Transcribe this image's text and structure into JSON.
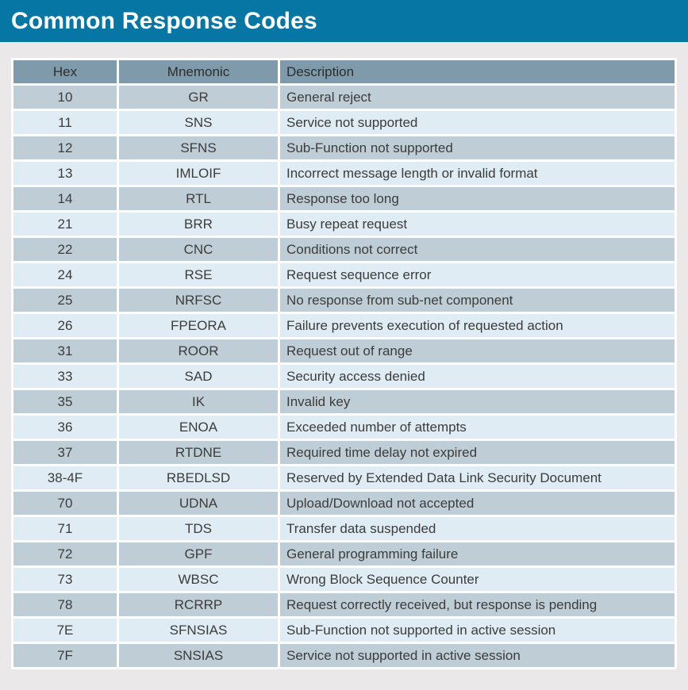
{
  "header": {
    "title": "Common Response Codes"
  },
  "table": {
    "columns": [
      "Hex",
      "Mnemonic",
      "Description"
    ],
    "rows": [
      {
        "hex": "10",
        "mnemonic": "GR",
        "description": "General reject"
      },
      {
        "hex": "11",
        "mnemonic": "SNS",
        "description": "Service not supported"
      },
      {
        "hex": "12",
        "mnemonic": "SFNS",
        "description": "Sub-Function not supported"
      },
      {
        "hex": "13",
        "mnemonic": "IMLOIF",
        "description": "Incorrect message length or invalid format"
      },
      {
        "hex": "14",
        "mnemonic": "RTL",
        "description": "Response too long"
      },
      {
        "hex": "21",
        "mnemonic": "BRR",
        "description": "Busy repeat request"
      },
      {
        "hex": "22",
        "mnemonic": "CNC",
        "description": "Conditions not correct"
      },
      {
        "hex": "24",
        "mnemonic": "RSE",
        "description": "Request sequence error"
      },
      {
        "hex": "25",
        "mnemonic": "NRFSC",
        "description": "No response from sub-net component"
      },
      {
        "hex": "26",
        "mnemonic": "FPEORA",
        "description": "Failure prevents execution of requested action"
      },
      {
        "hex": "31",
        "mnemonic": "ROOR",
        "description": "Request out of range"
      },
      {
        "hex": "33",
        "mnemonic": "SAD",
        "description": "Security access denied"
      },
      {
        "hex": "35",
        "mnemonic": "IK",
        "description": "Invalid key"
      },
      {
        "hex": "36",
        "mnemonic": "ENOA",
        "description": "Exceeded number of attempts"
      },
      {
        "hex": "37",
        "mnemonic": "RTDNE",
        "description": "Required time delay not expired"
      },
      {
        "hex": "38-4F",
        "mnemonic": "RBEDLSD",
        "description": "Reserved by Extended Data Link Security Document"
      },
      {
        "hex": "70",
        "mnemonic": "UDNA",
        "description": "Upload/Download not accepted"
      },
      {
        "hex": "71",
        "mnemonic": "TDS",
        "description": "Transfer data suspended"
      },
      {
        "hex": "72",
        "mnemonic": "GPF",
        "description": "General programming failure"
      },
      {
        "hex": "73",
        "mnemonic": "WBSC",
        "description": "Wrong Block Sequence Counter"
      },
      {
        "hex": "78",
        "mnemonic": "RCRRP",
        "description": "Request correctly received, but response is pending"
      },
      {
        "hex": "7E",
        "mnemonic": "SFNSIAS",
        "description": "Sub-Function not supported in active session"
      },
      {
        "hex": "7F",
        "mnemonic": "SNSIAS",
        "description": "Service not supported in active session"
      }
    ]
  },
  "colors": {
    "banner": "#0677a4",
    "page_bg": "#eae8e8",
    "header_row": "#7f9aaa",
    "row_dark": "#bfcdd7",
    "row_light": "#dfecf4",
    "cell_border": "#ffffff",
    "title_text": "#ffffff",
    "header_text": "#2d2d2d",
    "body_text": "#3c3c3c"
  }
}
